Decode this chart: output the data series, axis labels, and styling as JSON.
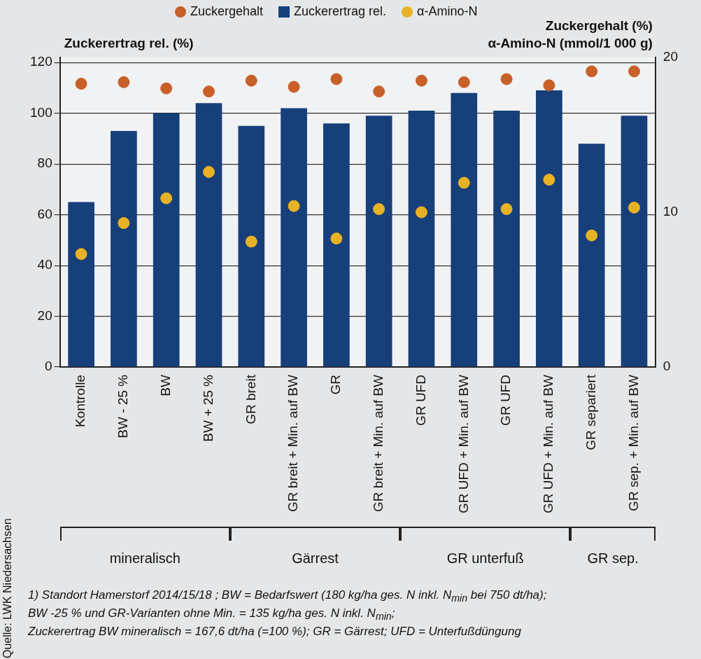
{
  "chart_data": {
    "type": "bar",
    "ylabel": "Zuckerertrag rel. (%)",
    "y2label": "Zuckergehalt (%)\nα-Amino-N (mmol/1 000 g)",
    "categories": [
      "Kontrolle",
      "BW - 25 %",
      "BW",
      "BW + 25 %",
      "GR breit",
      "GR breit + Min. auf BW",
      "GR",
      "GR breit + Min. auf BW",
      "GR UFD",
      "GR UFD + Min. auf BW",
      "GR UFD",
      "GR UFD + Min. auf BW",
      "GR separiert",
      "GR sep. + Min. auf BW"
    ],
    "series": [
      {
        "name": "Zuckergehalt",
        "type": "scatter",
        "axis": "y2",
        "color": "#c8602a",
        "values": [
          18.3,
          18.4,
          18.0,
          17.8,
          18.5,
          18.1,
          18.6,
          17.8,
          18.5,
          18.4,
          18.6,
          18.2,
          19.1,
          19.1
        ]
      },
      {
        "name": "Zuckerertrag rel.",
        "color": "#173f7a",
        "values": [
          65,
          93,
          100,
          104,
          95,
          102,
          96,
          99,
          101,
          108,
          101,
          109,
          88,
          99
        ]
      },
      {
        "name": "α-Amino-N",
        "type": "scatter",
        "axis": "y2",
        "color": "#e8b225",
        "values": [
          7.3,
          9.3,
          10.9,
          12.6,
          8.1,
          10.4,
          8.3,
          10.2,
          10.0,
          11.9,
          10.2,
          12.1,
          8.5,
          10.3
        ]
      }
    ],
    "ylim": [
      0,
      122
    ],
    "yticks": [
      0,
      20,
      40,
      60,
      80,
      100,
      120
    ],
    "y2lim": [
      0,
      20
    ],
    "y2ticks": [
      0,
      10,
      20
    ],
    "grid": "y",
    "legend": "top",
    "marker": "circle",
    "annotations": [
      "mineralisch",
      "Gärrest",
      "GR unterfuß",
      "GR sep.",
      "1) Standort Hamerstorf 2014/15/18 ; BW = Bedarfswert (180 kg/ha ges. N inkl. N$_{min}$ bei 750 dt/ha);",
      "BW -25 % und GR-Varianten ohne Min. = 135 kg/ha ges. N inkl. N$_{min}$;",
      "Zuckerertrag BW mineralisch = 167,6 dt/ha (=100 %); GR = Gärrest; UFD = Unterfußdüngung",
      "Quelle: LWK Niedersachsen"
    ]
  }
}
